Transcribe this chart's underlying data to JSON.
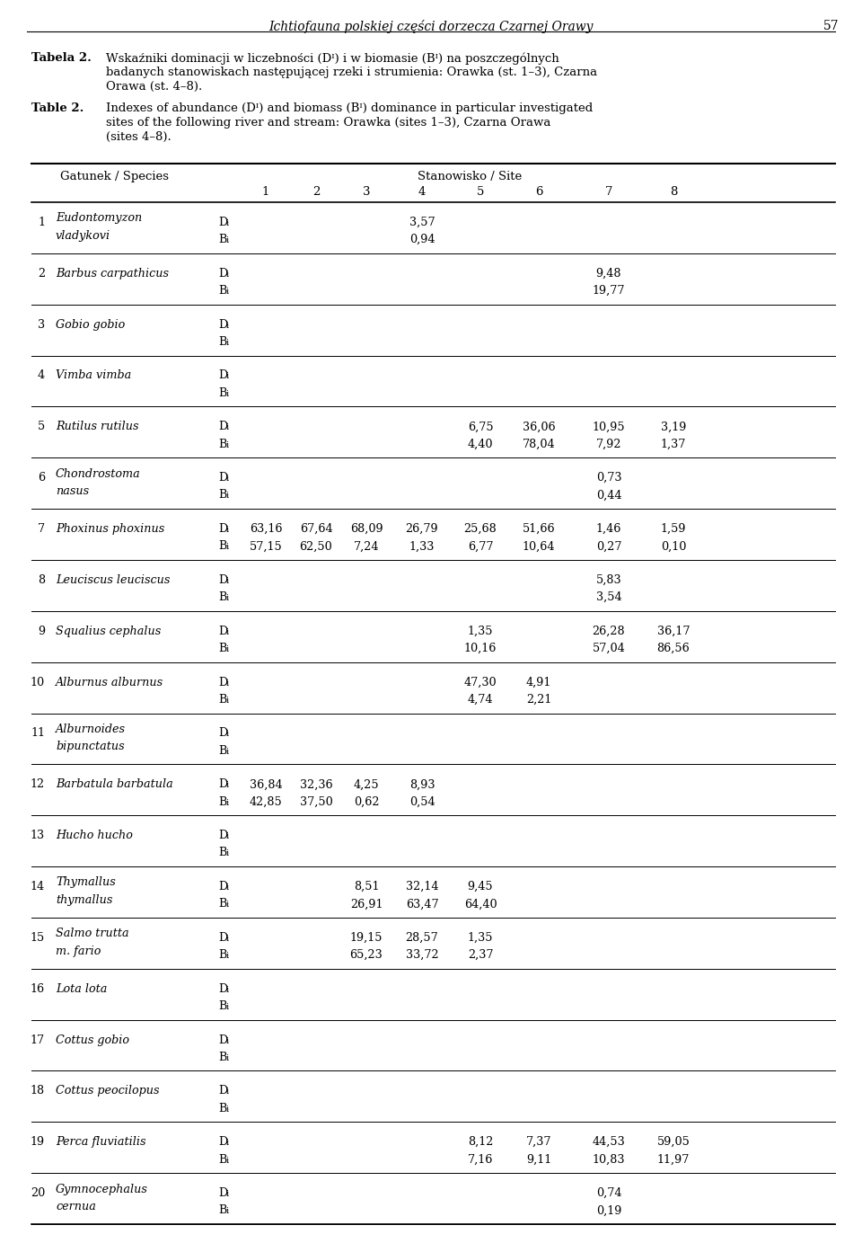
{
  "header_title": "Ichtiofauna polskiej części dorzecza Czarnej Orawy",
  "page_number": "57",
  "tabela_label": "Tabela 2.",
  "table_label": "Table 2.",
  "col_header_left": "Gatunek / Species",
  "col_header_site": "Stanowisko / Site",
  "col_sites": [
    "1",
    "2",
    "3",
    "4",
    "5",
    "6",
    "7",
    "8"
  ],
  "tabela_lines": [
    "Wskaźniki dominacji w liczebności (Dᴵ) i w biomasie (Bᴵ) na poszczególnych",
    "badanych stanowiskach następującej rzeki i strumienia: Orawka (st. 1–3), Czarna",
    "Orawa (st. 4–8)."
  ],
  "table_lines": [
    "Indexes of abundance (Dᴵ) and biomass (Bᴵ) dominance in particular investigated",
    "sites of the following river and stream: Orawka (sites 1–3), Czarna Orawa",
    "(sites 4–8)."
  ],
  "rows": [
    {
      "num": "1",
      "species_line1": "Eudontomyzon",
      "species_line2": "vladykovi",
      "D": [
        "",
        "",
        "",
        "3,57",
        "",
        "",
        "",
        ""
      ],
      "B": [
        "",
        "",
        "",
        "0,94",
        "",
        "",
        "",
        ""
      ]
    },
    {
      "num": "2",
      "species_line1": "Barbus carpathicus",
      "species_line2": "",
      "D": [
        "",
        "",
        "",
        "",
        "",
        "",
        "9,48",
        ""
      ],
      "B": [
        "",
        "",
        "",
        "",
        "",
        "",
        "19,77",
        ""
      ]
    },
    {
      "num": "3",
      "species_line1": "Gobio gobio",
      "species_line2": "",
      "D": [
        "",
        "",
        "",
        "",
        "",
        "",
        "",
        ""
      ],
      "B": [
        "",
        "",
        "",
        "",
        "",
        "",
        "",
        ""
      ]
    },
    {
      "num": "4",
      "species_line1": "Vimba vimba",
      "species_line2": "",
      "D": [
        "",
        "",
        "",
        "",
        "",
        "",
        "",
        ""
      ],
      "B": [
        "",
        "",
        "",
        "",
        "",
        "",
        "",
        ""
      ]
    },
    {
      "num": "5",
      "species_line1": "Rutilus rutilus",
      "species_line2": "",
      "D": [
        "",
        "",
        "",
        "",
        "6,75",
        "36,06",
        "10,95",
        "3,19"
      ],
      "B": [
        "",
        "",
        "",
        "",
        "4,40",
        "78,04",
        "7,92",
        "1,37"
      ]
    },
    {
      "num": "6",
      "species_line1": "Chondrostoma",
      "species_line2": "nasus",
      "D": [
        "",
        "",
        "",
        "",
        "",
        "",
        "0,73",
        ""
      ],
      "B": [
        "",
        "",
        "",
        "",
        "",
        "",
        "0,44",
        ""
      ]
    },
    {
      "num": "7",
      "species_line1": "Phoxinus phoxinus",
      "species_line2": "",
      "D": [
        "63,16",
        "67,64",
        "68,09",
        "26,79",
        "25,68",
        "51,66",
        "1,46",
        "1,59"
      ],
      "B": [
        "57,15",
        "62,50",
        "7,24",
        "1,33",
        "6,77",
        "10,64",
        "0,27",
        "0,10"
      ]
    },
    {
      "num": "8",
      "species_line1": "Leuciscus leuciscus",
      "species_line2": "",
      "D": [
        "",
        "",
        "",
        "",
        "",
        "",
        "5,83",
        ""
      ],
      "B": [
        "",
        "",
        "",
        "",
        "",
        "",
        "3,54",
        ""
      ]
    },
    {
      "num": "9",
      "species_line1": "Squalius cephalus",
      "species_line2": "",
      "D": [
        "",
        "",
        "",
        "",
        "1,35",
        "",
        "26,28",
        "36,17"
      ],
      "B": [
        "",
        "",
        "",
        "",
        "10,16",
        "",
        "57,04",
        "86,56"
      ]
    },
    {
      "num": "10",
      "species_line1": "Alburnus alburnus",
      "species_line2": "",
      "D": [
        "",
        "",
        "",
        "",
        "47,30",
        "4,91",
        "",
        ""
      ],
      "B": [
        "",
        "",
        "",
        "",
        "4,74",
        "2,21",
        "",
        ""
      ]
    },
    {
      "num": "11",
      "species_line1": "Alburnoides",
      "species_line2": "bipunctatus",
      "D": [
        "",
        "",
        "",
        "",
        "",
        "",
        "",
        ""
      ],
      "B": [
        "",
        "",
        "",
        "",
        "",
        "",
        "",
        ""
      ]
    },
    {
      "num": "12",
      "species_line1": "Barbatula barbatula",
      "species_line2": "",
      "D": [
        "36,84",
        "32,36",
        "4,25",
        "8,93",
        "",
        "",
        "",
        ""
      ],
      "B": [
        "42,85",
        "37,50",
        "0,62",
        "0,54",
        "",
        "",
        "",
        ""
      ]
    },
    {
      "num": "13",
      "species_line1": "Hucho hucho",
      "species_line2": "",
      "D": [
        "",
        "",
        "",
        "",
        "",
        "",
        "",
        ""
      ],
      "B": [
        "",
        "",
        "",
        "",
        "",
        "",
        "",
        ""
      ]
    },
    {
      "num": "14",
      "species_line1": "Thymallus",
      "species_line2": "thymallus",
      "D": [
        "",
        "",
        "8,51",
        "32,14",
        "9,45",
        "",
        "",
        ""
      ],
      "B": [
        "",
        "",
        "26,91",
        "63,47",
        "64,40",
        "",
        "",
        ""
      ]
    },
    {
      "num": "15",
      "species_line1": "Salmo trutta",
      "species_line2": "m. fario",
      "D": [
        "",
        "",
        "19,15",
        "28,57",
        "1,35",
        "",
        "",
        ""
      ],
      "B": [
        "",
        "",
        "65,23",
        "33,72",
        "2,37",
        "",
        "",
        ""
      ]
    },
    {
      "num": "16",
      "species_line1": "Lota lota",
      "species_line2": "",
      "D": [
        "",
        "",
        "",
        "",
        "",
        "",
        "",
        ""
      ],
      "B": [
        "",
        "",
        "",
        "",
        "",
        "",
        "",
        ""
      ]
    },
    {
      "num": "17",
      "species_line1": "Cottus gobio",
      "species_line2": "",
      "D": [
        "",
        "",
        "",
        "",
        "",
        "",
        "",
        ""
      ],
      "B": [
        "",
        "",
        "",
        "",
        "",
        "",
        "",
        ""
      ]
    },
    {
      "num": "18",
      "species_line1": "Cottus peocilopus",
      "species_line2": "",
      "D": [
        "",
        "",
        "",
        "",
        "",
        "",
        "",
        ""
      ],
      "B": [
        "",
        "",
        "",
        "",
        "",
        "",
        "",
        ""
      ]
    },
    {
      "num": "19",
      "species_line1": "Perca fluviatilis",
      "species_line2": "",
      "D": [
        "",
        "",
        "",
        "",
        "8,12",
        "7,37",
        "44,53",
        "59,05"
      ],
      "B": [
        "",
        "",
        "",
        "",
        "7,16",
        "9,11",
        "10,83",
        "11,97"
      ]
    },
    {
      "num": "20",
      "species_line1": "Gymnocephalus",
      "species_line2": "cernua",
      "D": [
        "",
        "",
        "",
        "",
        "",
        "",
        "0,74",
        ""
      ],
      "B": [
        "",
        "",
        "",
        "",
        "",
        "",
        "0,19",
        ""
      ]
    }
  ]
}
